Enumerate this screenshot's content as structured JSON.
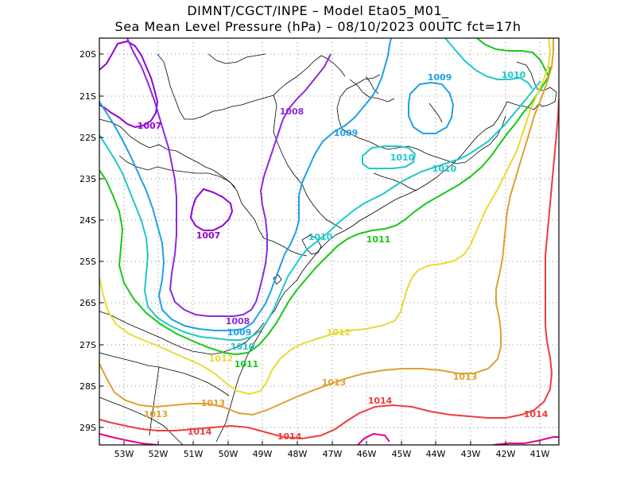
{
  "title": {
    "line1": "DIMNT/CGCT/INPE –  Model Eta05_M01_",
    "line2": "Sea Mean Level Pressure (hPa) – 08/10/2023 00UTC fct=17h"
  },
  "axes": {
    "lat_labels": [
      "20S",
      "21S",
      "22S",
      "23S",
      "24S",
      "25S",
      "26S",
      "27S",
      "28S",
      "29S"
    ],
    "lon_labels": [
      "53W",
      "52W",
      "51W",
      "50W",
      "49W",
      "48W",
      "47W",
      "46W",
      "45W",
      "44W",
      "43W",
      "42W",
      "41W"
    ]
  },
  "colors": {
    "c1007": "#9400d3",
    "c1008": "#8a2be2",
    "c1009": "#1ea0e6",
    "c1010": "#20c8c8",
    "c1011": "#18c818",
    "c1012": "#e6dc32",
    "c1013": "#e0a030",
    "c1014": "#f03c3c",
    "c1015": "#e6008c",
    "coast": "#000000",
    "grid": "#888888"
  },
  "contour_labels": [
    {
      "text": "1007",
      "color": "#9400d3"
    },
    {
      "text": "1008",
      "color": "#8a2be2"
    },
    {
      "text": "1009",
      "color": "#1ea0e6"
    },
    {
      "text": "1009",
      "color": "#1ea0e6"
    },
    {
      "text": "1010",
      "color": "#20c8c8"
    },
    {
      "text": "1010",
      "color": "#20c8c8"
    },
    {
      "text": "1010",
      "color": "#20c8c8"
    },
    {
      "text": "1007",
      "color": "#9400d3"
    },
    {
      "text": "1010",
      "color": "#20c8c8"
    },
    {
      "text": "1011",
      "color": "#18c818"
    },
    {
      "text": "1008",
      "color": "#8a2be2"
    },
    {
      "text": "1009",
      "color": "#1ea0e6"
    },
    {
      "text": "1010",
      "color": "#20c8c8"
    },
    {
      "text": "1011",
      "color": "#18c818"
    },
    {
      "text": "1012",
      "color": "#e6dc32"
    },
    {
      "text": "1012",
      "color": "#e6dc32"
    },
    {
      "text": "1013",
      "color": "#e0a030"
    },
    {
      "text": "1013",
      "color": "#e0a030"
    },
    {
      "text": "1013",
      "color": "#e0a030"
    },
    {
      "text": "1013",
      "color": "#e0a030"
    },
    {
      "text": "1014",
      "color": "#f03c3c"
    },
    {
      "text": "1014",
      "color": "#f03c3c"
    },
    {
      "text": "1014",
      "color": "#f03c3c"
    },
    {
      "text": "1014",
      "color": "#f03c3c"
    }
  ]
}
